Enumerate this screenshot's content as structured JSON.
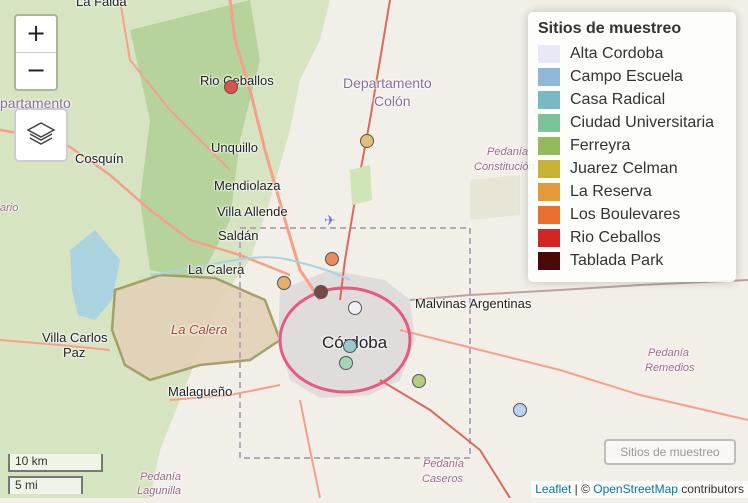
{
  "map": {
    "labels": {
      "la_falda": "La Falda",
      "rio_ceballos": "Rio Ceballos",
      "departamento_left": "Departamento",
      "unquillo": "Unquillo",
      "cosquin": "Cosquín",
      "mendiolaza": "Mendiolaza",
      "villa_allende": "Villa Allende",
      "saldan": "Saldán",
      "la_calera": "La Calera",
      "la_calera_area": "La Calera",
      "villa_carlos_paz_1": "Villa Carlos",
      "villa_carlos_paz_2": "Paz",
      "malagueno": "Malagueño",
      "cordoba": "Córdoba",
      "malvinas": "Malvinas Argentinas",
      "dept_colon_1": "Departamento",
      "dept_colon_2": "Colón",
      "pedania_constitucion_1": "Pedanía",
      "pedania_constitucion_2": "Constitución",
      "pedania_remedios_1": "Pedanía",
      "pedania_remedios_2": "Remedios",
      "pedania_caseros_1": "Pedanía",
      "pedania_caseros_2": "Caseros",
      "pedania_lagunilla_1": "Pedanía",
      "pedania_lagunilla_2": "Lagunilla",
      "left_ario": "ario",
      "left_partial": "partamento"
    }
  },
  "controls": {
    "zoom_in": "+",
    "zoom_out": "−",
    "layers_icon": "layers-icon",
    "toggle_label": "Sitios de muestreo"
  },
  "legend": {
    "title": "Sitios de muestreo",
    "items": [
      {
        "label": "Alta Cordoba",
        "color": "#e8e8f6"
      },
      {
        "label": "Campo Escuela",
        "color": "#8fb8d8"
      },
      {
        "label": "Casa Radical",
        "color": "#7ab8c4"
      },
      {
        "label": "Ciudad Universitaria",
        "color": "#7cc39a"
      },
      {
        "label": "Ferreyra",
        "color": "#93bb5e"
      },
      {
        "label": "Juarez Celman",
        "color": "#c8b236"
      },
      {
        "label": "La Reserva",
        "color": "#e59a3a"
      },
      {
        "label": "Los Boulevares",
        "color": "#e8702e"
      },
      {
        "label": "Rio Ceballos",
        "color": "#d42424"
      },
      {
        "label": "Tablada Park",
        "color": "#4a0a0a"
      }
    ]
  },
  "markers": [
    {
      "site": "Rio Ceballos",
      "color": "#d9534a"
    },
    {
      "site": "Juarez Celman",
      "color": "#dfc07a"
    },
    {
      "site": "Los Boulevares",
      "color": "#e88c5e"
    },
    {
      "site": "La Reserva",
      "color": "#e3b06e"
    },
    {
      "site": "Tablada Park",
      "color": "#7a4848"
    },
    {
      "site": "Alta Cordoba",
      "color": "#f2f2f6"
    },
    {
      "site": "Casa Radical",
      "color": "#9cc7cc"
    },
    {
      "site": "Ciudad Universitaria",
      "color": "#a6d6b4"
    },
    {
      "site": "Ferreyra",
      "color": "#b3cc86"
    },
    {
      "site": "Campo Escuela",
      "color": "#b8d4ea"
    }
  ],
  "scale": {
    "km": "10 km",
    "mi": "5 mi"
  },
  "attribution": {
    "leaflet": "Leaflet",
    "sep": " | © ",
    "osm": "OpenStreetMap",
    "contrib": " contributors"
  }
}
